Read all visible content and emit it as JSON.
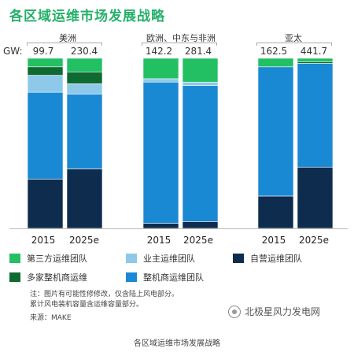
{
  "title": "各区域运维市场发展战略",
  "gw_label": "GW:",
  "regions": [
    "美洲",
    "欧洲、中东与非洲",
    "亚太"
  ],
  "colors": {
    "third_party": "#22c063",
    "owner": "#8ec9ea",
    "self_operated": "#0e2c4e",
    "multi_oem": "#0f6a32",
    "oem": "#1a89d4"
  },
  "legend": {
    "third_party": "第三方运维团队",
    "owner": "业主运维团队",
    "self_operated": "自营运维团队",
    "multi_oem": "多家整机商运维",
    "oem": "整机商运维团队"
  },
  "note_lines": [
    "注：图片有可能性修修改，仅含陆上风电部分。",
    "累计风电装机容量含运维容量部分。",
    "来源：MAKE"
  ],
  "watermark": "北极星风力发电网",
  "caption": "各区域运维市场发展战略",
  "chart_data": {
    "type": "bar",
    "stacked": true,
    "normalized": true,
    "groups": [
      {
        "region": "美洲",
        "bars": [
          {
            "label": "2015",
            "total": "99.7"
          },
          {
            "label": "2025e",
            "total": "230.4"
          }
        ]
      },
      {
        "region": "欧洲、中东与非洲",
        "bars": [
          {
            "label": "2015",
            "total": "142.2"
          },
          {
            "label": "2025e",
            "total": "281.4"
          }
        ]
      },
      {
        "region": "亚太",
        "bars": [
          {
            "label": "2015",
            "total": "162.5"
          },
          {
            "label": "2025e",
            "total": "441.7"
          }
        ]
      }
    ],
    "series_order": [
      "self_operated",
      "oem",
      "owner",
      "multi_oem",
      "third_party"
    ],
    "series": [
      {
        "name": "自营运维团队",
        "key": "self_operated",
        "values": [
          29,
          35,
          3,
          4,
          19,
          36
        ]
      },
      {
        "name": "整机商运维团队",
        "key": "oem",
        "values": [
          51,
          44,
          83,
          80,
          76,
          61
        ]
      },
      {
        "name": "业主运维团队",
        "key": "owner",
        "values": [
          10,
          6,
          2,
          2,
          0,
          0
        ]
      },
      {
        "name": "多家整机商运维",
        "key": "multi_oem",
        "values": [
          5,
          7,
          0,
          0,
          0,
          1
        ]
      },
      {
        "name": "第三方运维团队",
        "key": "third_party",
        "values": [
          5,
          8,
          12,
          14,
          5,
          2
        ]
      }
    ],
    "ylim": [
      0,
      100
    ]
  }
}
